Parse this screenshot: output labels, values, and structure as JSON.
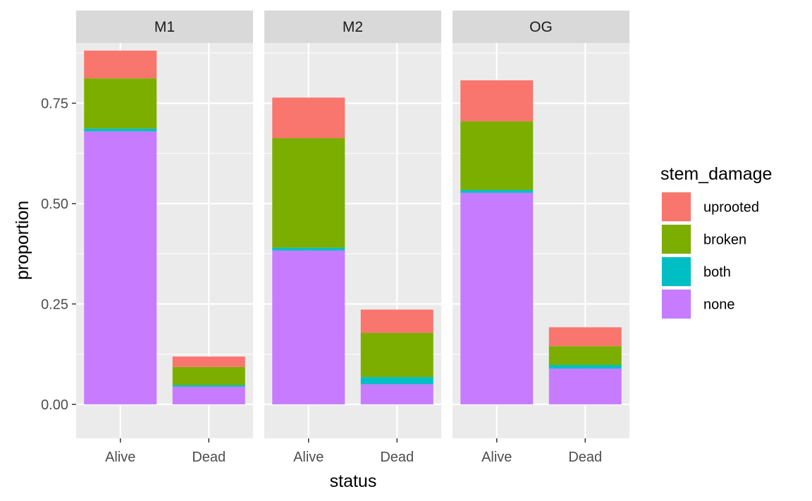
{
  "chart_data": {
    "type": "bar",
    "stacked": true,
    "facets": [
      "M1",
      "M2",
      "OG"
    ],
    "categories": [
      "Alive",
      "Dead"
    ],
    "xlabel": "status",
    "ylabel": "proportion",
    "ylim": [
      -0.0845,
      0.9
    ],
    "yticks": [
      0,
      0.25,
      0.5,
      0.75
    ],
    "ytick_labels": [
      "0.00",
      "0.25",
      "0.50",
      "0.75"
    ],
    "grid": true,
    "legend": {
      "title": "stem_damage",
      "position": "right",
      "entries": [
        "uprooted",
        "broken",
        "both",
        "none"
      ]
    },
    "colors": {
      "uprooted": "#F8766D",
      "broken": "#7CAE00",
      "both": "#00BFC4",
      "none": "#C77CFF",
      "panel": "#EBEBEB",
      "strip": "#D9D9D9",
      "grid": "#FFFFFF"
    },
    "stack_order": [
      "none",
      "both",
      "broken",
      "uprooted"
    ],
    "data": {
      "M1": {
        "Alive": {
          "none": 0.68,
          "both": 0.007,
          "broken": 0.125,
          "uprooted": 0.069
        },
        "Dead": {
          "none": 0.044,
          "both": 0.004,
          "broken": 0.045,
          "uprooted": 0.026
        }
      },
      "M2": {
        "Alive": {
          "none": 0.383,
          "both": 0.007,
          "broken": 0.273,
          "uprooted": 0.101
        },
        "Dead": {
          "none": 0.05,
          "both": 0.018,
          "broken": 0.11,
          "uprooted": 0.058
        }
      },
      "OG": {
        "Alive": {
          "none": 0.527,
          "both": 0.007,
          "broken": 0.171,
          "uprooted": 0.102
        },
        "Dead": {
          "none": 0.089,
          "both": 0.009,
          "broken": 0.047,
          "uprooted": 0.047
        }
      }
    }
  }
}
